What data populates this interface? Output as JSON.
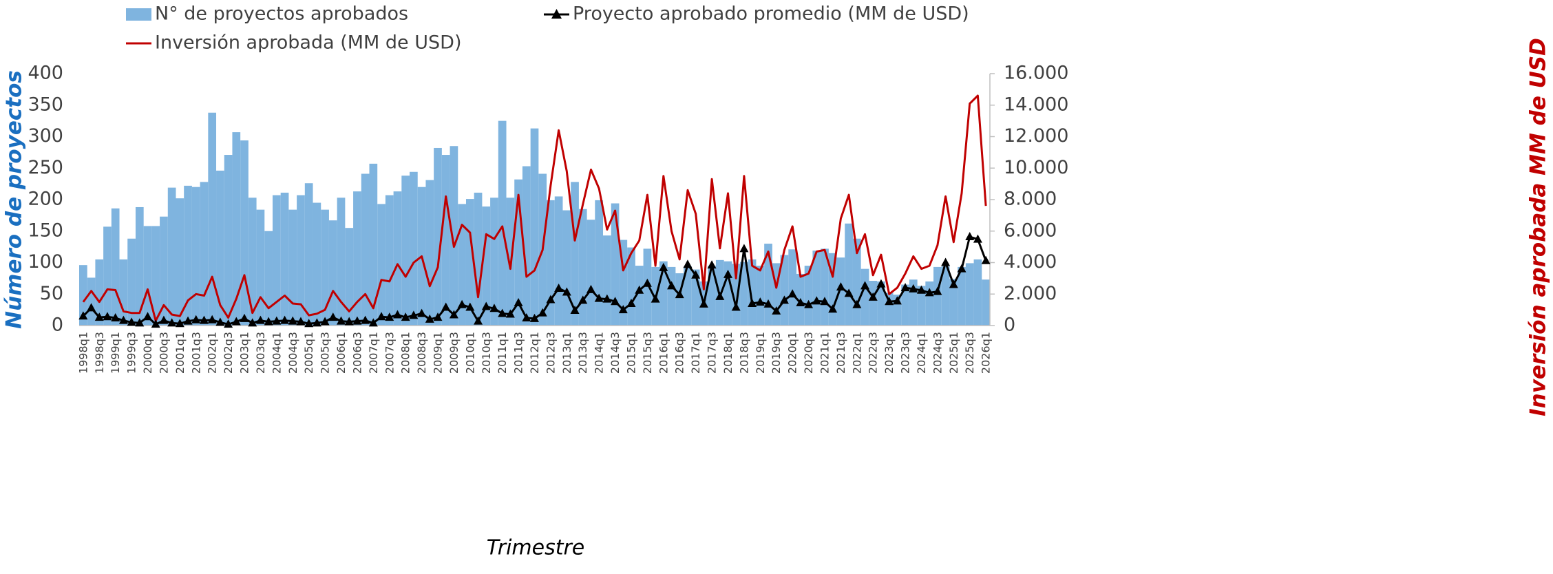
{
  "chart_data": {
    "type": "combo",
    "categories": [
      "1998q1",
      null,
      "1998q3",
      null,
      "1999q1",
      null,
      "1999q3",
      null,
      "2000q1",
      null,
      "2000q3",
      null,
      "2001q1",
      null,
      "2001q3",
      null,
      "2002q1",
      null,
      "2002q3",
      null,
      "2003q1",
      null,
      "2003q3",
      null,
      "2004q1",
      null,
      "2004q3",
      null,
      "2005q1",
      null,
      "2005q3",
      null,
      "2006q1",
      null,
      "2006q3",
      null,
      "2007q1",
      null,
      "2007q3",
      null,
      "2008q1",
      null,
      "2008q3",
      null,
      "2009q1",
      null,
      "2009q3",
      null,
      "2010q1",
      null,
      "2010q3",
      null,
      "2011q1",
      null,
      "2011q3",
      null,
      "2012q1",
      null,
      "2012q3",
      null,
      "2013q1",
      null,
      "2013q3",
      null,
      "2014q1",
      null,
      "2014q3",
      null,
      "2015q1",
      null,
      "2015q3",
      null,
      "2016q1",
      null,
      "2016q3",
      null,
      "2017q1",
      null,
      "2017q3",
      null,
      "2018q1",
      null,
      "2018q3",
      null,
      "2019q1",
      null,
      "2019q3",
      null,
      "2020q1",
      null,
      "2020q3",
      null,
      "2021q1",
      null,
      "2021q3",
      null,
      "2022q1",
      null,
      "2022q3",
      null,
      "2023q1",
      null,
      "2023q3",
      null,
      "2024q1",
      null,
      "2024q3",
      null,
      "2025q1",
      null,
      "2025q3",
      null,
      "2026q1"
    ],
    "series": [
      {
        "name": "N° de proyectos aprobados",
        "type": "bar",
        "color": "#7fb4df",
        "values": [
          96,
          76,
          105,
          157,
          186,
          105,
          138,
          188,
          158,
          158,
          173,
          219,
          202,
          222,
          220,
          228,
          338,
          246,
          271,
          307,
          294,
          203,
          184,
          150,
          207,
          211,
          184,
          207,
          226,
          195,
          184,
          167,
          203,
          155,
          213,
          241,
          257,
          193,
          207,
          213,
          238,
          244,
          220,
          231,
          282,
          271,
          285,
          193,
          201,
          211,
          189,
          203,
          325,
          203,
          232,
          253,
          313,
          241,
          199,
          205,
          183,
          228,
          185,
          168,
          199,
          143,
          194,
          136,
          124,
          95,
          122,
          93,
          102,
          93,
          83,
          94,
          89,
          70,
          95,
          104,
          102,
          98,
          101,
          105,
          95,
          130,
          99,
          112,
          121,
          82,
          95,
          119,
          122,
          115,
          108,
          162,
          138,
          90,
          71,
          70,
          52,
          49,
          65,
          73,
          63,
          70,
          93,
          94,
          74,
          93,
          99,
          105,
          73
        ]
      },
      {
        "name": "Proyecto aprobado promedio (MM de USD)",
        "type": "line",
        "marker": "triangle",
        "color": "#000000",
        "values": [
          15,
          28,
          13,
          14,
          12,
          8,
          5,
          4,
          14,
          2,
          8,
          4,
          3,
          7,
          9,
          8,
          9,
          5,
          2,
          6,
          11,
          4,
          8,
          6,
          7,
          8,
          7,
          6,
          3,
          4,
          6,
          13,
          7,
          6,
          7,
          8,
          4,
          14,
          13,
          17,
          13,
          16,
          19,
          10,
          13,
          29,
          17,
          33,
          29,
          7,
          30,
          27,
          19,
          18,
          36,
          12,
          11,
          20,
          41,
          59,
          53,
          24,
          40,
          57,
          43,
          42,
          38,
          25,
          35,
          56,
          67,
          42,
          92,
          63,
          49,
          97,
          80,
          34,
          96,
          46,
          81,
          29,
          122,
          35,
          37,
          34,
          23,
          40,
          50,
          36,
          33,
          39,
          38,
          26,
          61,
          51,
          33,
          63,
          45,
          66,
          38,
          39,
          60,
          58,
          56,
          52,
          54,
          100,
          65,
          90,
          141,
          137,
          103
        ]
      },
      {
        "name": "Inversión aprobada (MM de USD)",
        "type": "line",
        "axis": "y2",
        "color": "#c00000",
        "values": [
          1500,
          2200,
          1500,
          2300,
          2250,
          900,
          800,
          800,
          2300,
          300,
          1300,
          700,
          600,
          1600,
          2000,
          1900,
          3100,
          1300,
          500,
          1700,
          3200,
          800,
          1800,
          1100,
          1500,
          1900,
          1400,
          1350,
          650,
          750,
          1000,
          2200,
          1500,
          900,
          1500,
          2000,
          1100,
          2900,
          2800,
          3900,
          3100,
          4000,
          4400,
          2500,
          3700,
          8200,
          5000,
          6400,
          5900,
          1800,
          5800,
          5500,
          6300,
          3600,
          8300,
          3100,
          3500,
          4800,
          8900,
          12400,
          9800,
          5400,
          7700,
          9900,
          8700,
          6100,
          7300,
          3500,
          4600,
          5400,
          8300,
          3800,
          9500,
          6000,
          4200,
          8600,
          7100,
          2300,
          9300,
          4900,
          8400,
          3000,
          9500,
          3800,
          3500,
          4700,
          2400,
          4800,
          6300,
          3100,
          3300,
          4700,
          4800,
          3100,
          6800,
          8300,
          4600,
          5800,
          3200,
          4500,
          2000,
          2400,
          3300,
          4400,
          3600,
          3800,
          5100,
          8200,
          5300,
          8400,
          14100,
          14600,
          7600
        ]
      }
    ],
    "x_label": "Trimestre",
    "y_label": "Número de proyectos",
    "y2_label": "Inversión aprobada MM de USD",
    "ylim": [
      0,
      400
    ],
    "yticks": [
      0,
      50,
      100,
      150,
      200,
      250,
      300,
      350,
      400
    ],
    "y2lim": [
      0,
      16000
    ],
    "y2ticks": [
      0,
      {
        "value": 2000,
        "label": "2.000"
      },
      {
        "value": 4000,
        "label": "4.000"
      },
      {
        "value": 6000,
        "label": "6.000"
      },
      {
        "value": 8000,
        "label": "8.000"
      },
      {
        "value": 10000,
        "label": "10.000"
      },
      {
        "value": 12000,
        "label": "12.000"
      },
      {
        "value": 14000,
        "label": "14.000"
      },
      {
        "value": 16000,
        "label": "16.000"
      }
    ],
    "legend": "top"
  }
}
